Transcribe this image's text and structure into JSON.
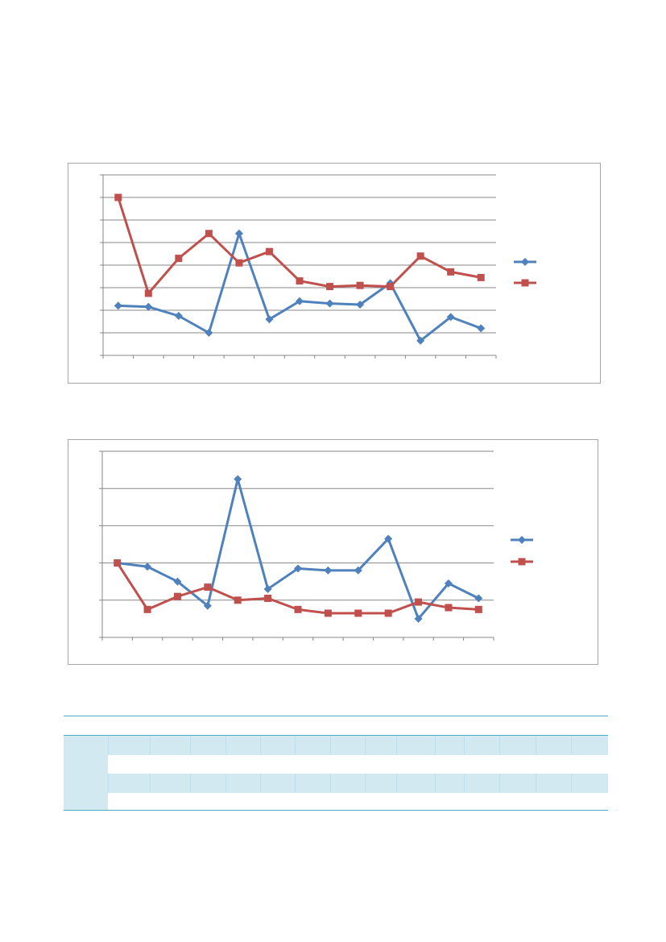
{
  "chart_data": [
    {
      "type": "line",
      "categories": [
        "",
        "",
        "",
        "",
        "",
        "",
        "",
        "",
        "",
        "",
        "",
        "",
        ""
      ],
      "ylim": [
        0,
        8
      ],
      "yticks": [
        0,
        1,
        2,
        3,
        4,
        5,
        6,
        7,
        8
      ],
      "grid": true,
      "legend": "right",
      "series": [
        {
          "color": "#4f81bd",
          "marker": "diamond",
          "values": [
            2.2,
            2.15,
            1.75,
            1.0,
            5.4,
            1.6,
            2.4,
            2.3,
            2.25,
            3.2,
            0.65,
            1.7,
            1.2
          ]
        },
        {
          "color": "#c0504d",
          "marker": "square",
          "values": [
            7.0,
            2.75,
            4.3,
            5.4,
            4.1,
            4.6,
            3.3,
            3.05,
            3.1,
            3.05,
            4.4,
            3.7,
            3.45
          ]
        }
      ]
    },
    {
      "type": "line",
      "categories": [
        "",
        "",
        "",
        "",
        "",
        "",
        "",
        "",
        "",
        "",
        "",
        "",
        ""
      ],
      "ylim": [
        0,
        5
      ],
      "yticks": [
        0,
        1,
        2,
        3,
        4,
        5
      ],
      "grid": true,
      "legend": "right",
      "series": [
        {
          "color": "#4f81bd",
          "marker": "diamond",
          "values": [
            2.0,
            1.9,
            1.5,
            0.85,
            4.25,
            1.3,
            1.85,
            1.8,
            1.8,
            2.65,
            0.5,
            1.45,
            1.05
          ]
        },
        {
          "color": "#c0504d",
          "marker": "square",
          "values": [
            2.0,
            0.75,
            1.1,
            1.35,
            1.0,
            1.05,
            0.75,
            0.65,
            0.65,
            0.65,
            0.95,
            0.8,
            0.75
          ]
        }
      ]
    }
  ],
  "table": {
    "header_color": "#4bacc6",
    "band_color": "#d3e9f2"
  }
}
